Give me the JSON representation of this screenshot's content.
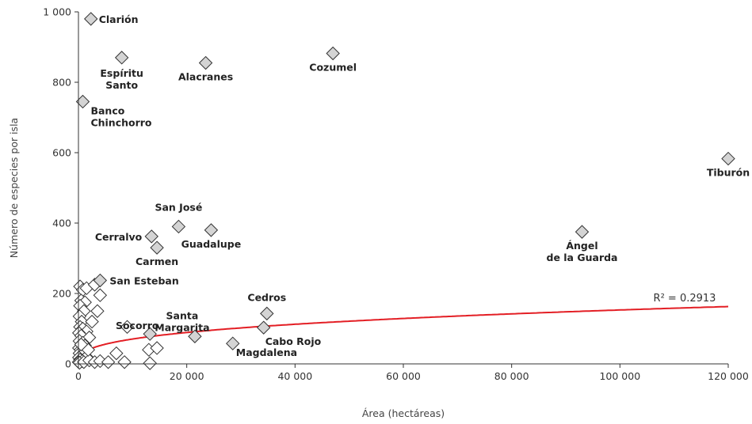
{
  "chart_data": {
    "type": "scatter",
    "title": "",
    "xlabel": "Área (hectáreas)",
    "ylabel": "Número de especies por isla",
    "xlim": [
      0,
      120000
    ],
    "ylim": [
      0,
      1000
    ],
    "xticks": [
      0,
      20000,
      40000,
      60000,
      80000,
      100000,
      120000
    ],
    "xtick_labels": [
      "0",
      "20 000",
      "40 000",
      "60 000",
      "80 000",
      "100 000",
      "120 000"
    ],
    "yticks": [
      0,
      200,
      400,
      600,
      800,
      1000
    ],
    "ytick_labels": [
      "0",
      "200",
      "400",
      "600",
      "800",
      "1 000"
    ],
    "grid": false,
    "colors": {
      "labeled_marker": "#d4d4d4",
      "unlabeled_marker": "#ffffff",
      "marker_edge": "#333333",
      "fit_line": "#e31e24"
    },
    "fit": {
      "type": "power",
      "r2_label": "R² = 0.2913",
      "r2": 0.2913,
      "a": 3.2,
      "b": 0.336
    },
    "labeled_points": [
      {
        "name": "Clarión",
        "x": 2300,
        "y": 980
      },
      {
        "name": "Espíritu Santo",
        "x": 8000,
        "y": 870
      },
      {
        "name": "Alacranes",
        "x": 23500,
        "y": 855
      },
      {
        "name": "Cozumel",
        "x": 47000,
        "y": 882
      },
      {
        "name": "Banco Chinchorro",
        "x": 800,
        "y": 745
      },
      {
        "name": "Tiburón",
        "x": 120000,
        "y": 583
      },
      {
        "name": "San José",
        "x": 18500,
        "y": 390
      },
      {
        "name": "Cerralvo",
        "x": 13500,
        "y": 362
      },
      {
        "name": "Guadalupe",
        "x": 24500,
        "y": 380
      },
      {
        "name": "Carmen",
        "x": 14500,
        "y": 330
      },
      {
        "name": "Ángel de la Guarda",
        "x": 93000,
        "y": 375
      },
      {
        "name": "San Esteban",
        "x": 4000,
        "y": 237
      },
      {
        "name": "Cedros",
        "x": 34800,
        "y": 143
      },
      {
        "name": "Socorro",
        "x": 13200,
        "y": 85
      },
      {
        "name": "Santa Margarita",
        "x": 21500,
        "y": 78
      },
      {
        "name": "Cabo Rojo",
        "x": 34200,
        "y": 103
      },
      {
        "name": "Magdalena",
        "x": 28500,
        "y": 58
      }
    ],
    "unlabeled_points": [
      {
        "x": 300,
        "y": 220
      },
      {
        "x": 800,
        "y": 210
      },
      {
        "x": 1500,
        "y": 215
      },
      {
        "x": 3000,
        "y": 225
      },
      {
        "x": 500,
        "y": 180
      },
      {
        "x": 1200,
        "y": 175
      },
      {
        "x": 300,
        "y": 165
      },
      {
        "x": 1000,
        "y": 150
      },
      {
        "x": 3500,
        "y": 150
      },
      {
        "x": 4000,
        "y": 195
      },
      {
        "x": 200,
        "y": 135
      },
      {
        "x": 600,
        "y": 120
      },
      {
        "x": 2500,
        "y": 120
      },
      {
        "x": 300,
        "y": 105
      },
      {
        "x": 800,
        "y": 100
      },
      {
        "x": 1500,
        "y": 92
      },
      {
        "x": 100,
        "y": 88
      },
      {
        "x": 500,
        "y": 80
      },
      {
        "x": 2000,
        "y": 75
      },
      {
        "x": 200,
        "y": 65
      },
      {
        "x": 800,
        "y": 60
      },
      {
        "x": 1200,
        "y": 52
      },
      {
        "x": 100,
        "y": 45
      },
      {
        "x": 400,
        "y": 40
      },
      {
        "x": 900,
        "y": 35
      },
      {
        "x": 200,
        "y": 30
      },
      {
        "x": 600,
        "y": 25
      },
      {
        "x": 1500,
        "y": 20
      },
      {
        "x": 100,
        "y": 18
      },
      {
        "x": 300,
        "y": 12
      },
      {
        "x": 700,
        "y": 8
      },
      {
        "x": 50,
        "y": 5
      },
      {
        "x": 200,
        "y": 3
      },
      {
        "x": 1000,
        "y": 5
      },
      {
        "x": 2000,
        "y": 10
      },
      {
        "x": 3000,
        "y": 5
      },
      {
        "x": 4000,
        "y": 8
      },
      {
        "x": 5500,
        "y": 5
      },
      {
        "x": 7000,
        "y": 30
      },
      {
        "x": 8500,
        "y": 5
      },
      {
        "x": 9000,
        "y": 105
      },
      {
        "x": 13000,
        "y": 40
      },
      {
        "x": 14500,
        "y": 45
      },
      {
        "x": 13200,
        "y": 2
      },
      {
        "x": 1800,
        "y": 40
      },
      {
        "x": 500,
        "y": 55
      }
    ]
  }
}
